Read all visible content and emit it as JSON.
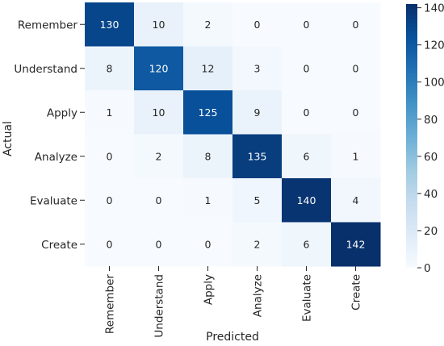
{
  "chart_data": {
    "type": "heatmap",
    "title": "",
    "xlabel": "Predicted",
    "ylabel": "Actual",
    "x_categories": [
      "Remember",
      "Understand",
      "Apply",
      "Analyze",
      "Evaluate",
      "Create"
    ],
    "y_categories": [
      "Remember",
      "Understand",
      "Apply",
      "Analyze",
      "Evaluate",
      "Create"
    ],
    "values": [
      [
        130,
        10,
        2,
        0,
        0,
        0
      ],
      [
        8,
        120,
        12,
        3,
        0,
        0
      ],
      [
        1,
        10,
        125,
        9,
        0,
        0
      ],
      [
        0,
        2,
        8,
        135,
        6,
        1
      ],
      [
        0,
        0,
        1,
        5,
        140,
        4
      ],
      [
        0,
        0,
        0,
        2,
        6,
        142
      ]
    ],
    "colorbar": {
      "min": 0,
      "max": 142,
      "ticks": [
        0,
        20,
        40,
        60,
        80,
        100,
        120,
        140
      ]
    },
    "colormap": "Blues",
    "colors": [
      "#f7fbff",
      "#deebf7",
      "#c6dbef",
      "#9ecae1",
      "#6baed6",
      "#4292c6",
      "#2171b5",
      "#08519c",
      "#08306b"
    ]
  }
}
